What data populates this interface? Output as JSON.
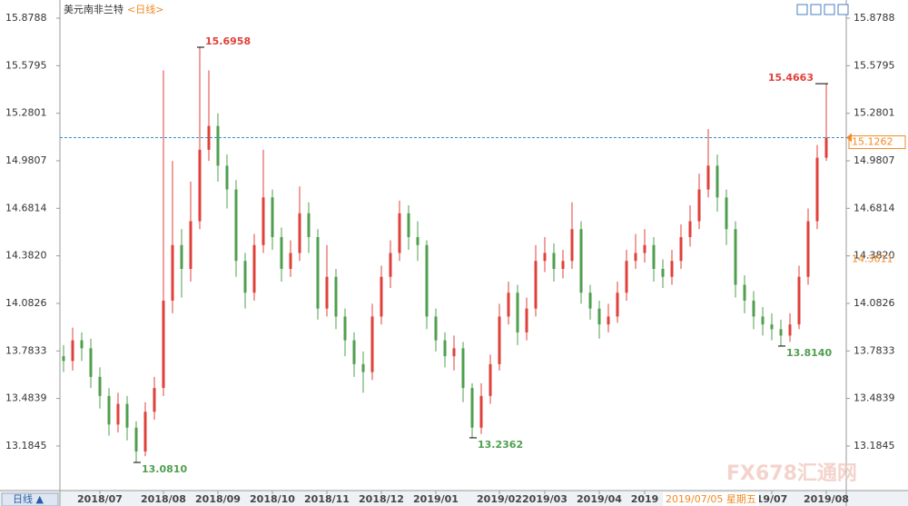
{
  "chart_data": {
    "type": "ohlc",
    "title": "美元南非兰特",
    "subtitle": "<日线>",
    "period_button": "日线 ▲",
    "watermark": "FX678汇通网",
    "up_color": "#e0403a",
    "down_color": "#4f9f4f",
    "categories": [
      null,
      null,
      null,
      null,
      "2018/07",
      null,
      null,
      null,
      null,
      null,
      null,
      "2018/08",
      null,
      null,
      null,
      null,
      null,
      "2018/09",
      null,
      null,
      null,
      null,
      null,
      "2018/10",
      null,
      null,
      null,
      null,
      null,
      "2018/11",
      null,
      null,
      null,
      null,
      null,
      "2018/12",
      null,
      null,
      null,
      null,
      null,
      "2019/01",
      null,
      null,
      null,
      null,
      null,
      null,
      "2019/02",
      null,
      null,
      null,
      null,
      "2019/03",
      null,
      null,
      null,
      null,
      null,
      "2019/04",
      null,
      null,
      null,
      null,
      "2019",
      null,
      null,
      null,
      null,
      null,
      null,
      null,
      null,
      null,
      null,
      null,
      null,
      null,
      "19/07",
      null,
      null,
      null,
      null,
      null,
      "2019/08"
    ],
    "open": [
      13.75,
      13.72,
      13.85,
      13.8,
      13.62,
      13.5,
      13.32,
      13.45,
      13.3,
      13.15,
      13.4,
      13.55,
      14.1,
      14.45,
      14.3,
      14.6,
      15.05,
      15.2,
      14.95,
      14.8,
      14.35,
      14.15,
      14.45,
      14.75,
      14.5,
      14.3,
      14.4,
      14.65,
      14.5,
      14.05,
      14.25,
      14.0,
      13.85,
      13.7,
      13.65,
      14.0,
      14.25,
      14.4,
      14.65,
      14.5,
      14.45,
      14.0,
      13.85,
      13.75,
      13.8,
      13.55,
      13.3,
      13.5,
      13.7,
      14.0,
      14.15,
      13.9,
      14.05,
      14.35,
      14.4,
      14.3,
      14.35,
      14.55,
      14.15,
      14.05,
      13.95,
      14.0,
      14.15,
      14.35,
      14.4,
      14.45,
      14.3,
      14.25,
      14.35,
      14.5,
      14.6,
      14.8,
      14.95,
      14.75,
      14.55,
      14.2,
      14.1,
      14.0,
      13.95,
      13.92,
      13.88,
      13.95,
      14.25,
      14.6,
      15.0
    ],
    "high": [
      13.82,
      13.93,
      13.9,
      13.86,
      13.68,
      13.55,
      13.52,
      13.5,
      13.34,
      13.46,
      13.62,
      15.55,
      14.98,
      14.55,
      14.85,
      15.6958,
      15.55,
      15.28,
      15.02,
      14.86,
      14.4,
      14.52,
      15.05,
      14.8,
      14.56,
      14.48,
      14.82,
      14.72,
      14.55,
      14.45,
      14.3,
      14.05,
      13.9,
      13.78,
      14.08,
      14.32,
      14.48,
      14.73,
      14.7,
      14.6,
      14.48,
      14.05,
      13.9,
      13.88,
      13.84,
      13.58,
      13.58,
      13.76,
      14.08,
      14.22,
      14.2,
      14.12,
      14.45,
      14.5,
      14.46,
      14.42,
      14.72,
      14.6,
      14.2,
      14.1,
      14.08,
      14.22,
      14.42,
      14.52,
      14.55,
      14.5,
      14.36,
      14.42,
      14.58,
      14.7,
      14.9,
      15.18,
      15.02,
      14.8,
      14.6,
      14.26,
      14.16,
      14.06,
      14.02,
      13.98,
      14.02,
      14.32,
      14.68,
      15.08,
      15.4663
    ],
    "low": [
      13.65,
      13.66,
      13.72,
      13.55,
      13.42,
      13.25,
      13.27,
      13.22,
      13.081,
      13.12,
      13.35,
      13.5,
      14.02,
      14.12,
      14.22,
      14.55,
      14.98,
      14.85,
      14.68,
      14.25,
      14.05,
      14.1,
      14.4,
      14.42,
      14.22,
      14.25,
      14.35,
      14.4,
      13.98,
      14.0,
      13.92,
      13.75,
      13.62,
      13.52,
      13.6,
      13.95,
      14.18,
      14.35,
      14.42,
      14.35,
      13.92,
      13.78,
      13.68,
      13.66,
      13.46,
      13.2362,
      13.26,
      13.45,
      13.66,
      13.95,
      13.82,
      13.85,
      14.0,
      14.28,
      14.22,
      14.24,
      14.3,
      14.08,
      13.98,
      13.86,
      13.9,
      13.96,
      14.1,
      14.3,
      14.34,
      14.22,
      14.18,
      14.2,
      14.3,
      14.44,
      14.55,
      14.75,
      14.66,
      14.45,
      14.12,
      14.02,
      13.92,
      13.88,
      13.85,
      13.814,
      13.84,
      13.92,
      14.2,
      14.55,
      14.98
    ],
    "close": [
      13.72,
      13.85,
      13.8,
      13.62,
      13.5,
      13.32,
      13.45,
      13.3,
      13.15,
      13.4,
      13.55,
      14.1,
      14.45,
      14.3,
      14.6,
      15.05,
      15.2,
      14.95,
      14.8,
      14.35,
      14.15,
      14.45,
      14.75,
      14.5,
      14.3,
      14.4,
      14.65,
      14.5,
      14.05,
      14.25,
      14.0,
      13.85,
      13.7,
      13.65,
      14.0,
      14.25,
      14.4,
      14.65,
      14.5,
      14.45,
      14.0,
      13.85,
      13.75,
      13.8,
      13.55,
      13.3,
      13.5,
      13.7,
      14.0,
      14.15,
      13.9,
      14.05,
      14.35,
      14.4,
      14.3,
      14.35,
      14.55,
      14.15,
      14.05,
      13.95,
      14.0,
      14.15,
      14.35,
      14.4,
      14.45,
      14.3,
      14.25,
      14.35,
      14.5,
      14.6,
      14.8,
      14.95,
      14.75,
      14.55,
      14.2,
      14.1,
      14.0,
      13.95,
      13.92,
      13.88,
      13.95,
      14.25,
      14.6,
      15.0,
      15.1262
    ],
    "extremes": [
      15.6958,
      {
        "value": 13.081,
        "label": "13.0810"
      },
      13.2362,
      15.4663,
      {
        "value": 13.814,
        "label": "13.8140"
      }
    ],
    "current_price": 15.1262,
    "current_color": "#f08a24",
    "crosshair": {
      "date": "2019/07/05 星期五",
      "value": 14.3611
    },
    "ylim": [
      12.904,
      15.9475
    ],
    "yticks": [
      13.1845,
      13.4839,
      13.7833,
      14.0826,
      {
        "value": 14.382,
        "label": "14.3820"
      },
      14.6814,
      14.9807,
      15.2801,
      15.5795,
      15.8788
    ]
  }
}
